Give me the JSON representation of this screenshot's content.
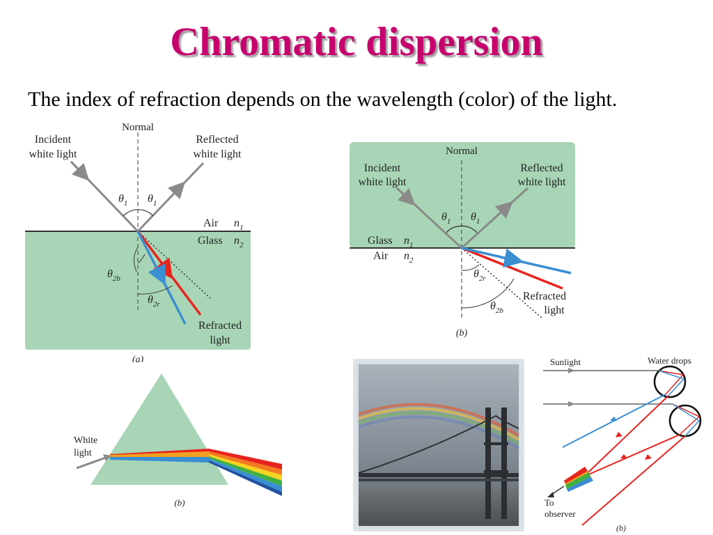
{
  "title": "Chromatic dispersion",
  "subtitle": "The index of refraction depends on the wavelength (color) of the light.",
  "colors": {
    "title": "#c8006e",
    "glass": "#a8d5b6",
    "red": "#e8231e",
    "blue": "#3a8ed2"
  },
  "fig_a": {
    "normal": "Normal",
    "incident_1": "Incident",
    "incident_2": "white light",
    "reflected_1": "Reflected",
    "reflected_2": "white light",
    "theta1": "θ",
    "theta1_sub": "1",
    "air": "Air",
    "n1": "n",
    "n1_sub": "1",
    "glass": "Glass",
    "n2": "n",
    "n2_sub": "2",
    "theta2b": "θ",
    "theta2b_sub": "2b",
    "theta2r": "θ",
    "theta2r_sub": "2r",
    "refracted_1": "Refracted",
    "refracted_2": "light",
    "caption": "(a)"
  },
  "fig_b": {
    "normal": "Normal",
    "incident_1": "Incident",
    "incident_2": "white light",
    "reflected_1": "Reflected",
    "reflected_2": "white light",
    "theta1": "θ",
    "theta1_sub": "1",
    "glass": "Glass",
    "n1": "n",
    "n1_sub": "1",
    "air": "Air",
    "n2": "n",
    "n2_sub": "2",
    "theta2r": "θ",
    "theta2r_sub": "2r",
    "theta2b": "θ",
    "theta2b_sub": "2b",
    "refracted_1": "Refracted",
    "refracted_2": "light",
    "caption": "(b)"
  },
  "prism": {
    "white_1": "White",
    "white_2": "light",
    "caption": "(b)"
  },
  "rainbow_diagram": {
    "sunlight": "Sunlight",
    "water_drops": "Water drops",
    "to_1": "To",
    "to_2": "observer",
    "caption": "(b)"
  }
}
